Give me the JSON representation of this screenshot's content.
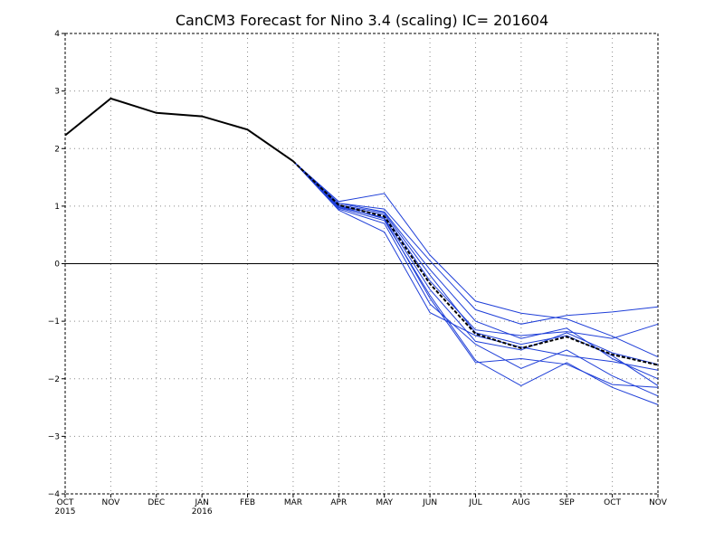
{
  "chart_data": {
    "type": "line",
    "title": "CanCM3 Forecast for Nino 3.4 (scaling) IC= 201604",
    "xlabel": "",
    "ylabel": "",
    "ylim": [
      -4,
      4
    ],
    "yticks": [
      "-4",
      "-3",
      "-2",
      "-1",
      "0",
      "1",
      "2",
      "3",
      "4"
    ],
    "categories": [
      "OCT",
      "NOV",
      "DEC",
      "JAN",
      "FEB",
      "MAR",
      "APR",
      "MAY",
      "JUN",
      "JUL",
      "AUG",
      "SEP",
      "OCT",
      "NOV"
    ],
    "category_sublabels": [
      "2015",
      "",
      "",
      "2016",
      "",
      "",
      "",
      "",
      "",
      "",
      "",
      "",
      "",
      ""
    ],
    "grid": true,
    "reference_line": 0,
    "colors": {
      "members": "#1f3fd8",
      "observed": "#000000",
      "mean": "#000000"
    },
    "observed": {
      "style": "solid-black",
      "values": [
        2.23,
        2.87,
        2.62,
        2.56,
        2.33,
        1.78
      ]
    },
    "ensemble_mean": {
      "style": "dashed-black",
      "start_index": 5,
      "values": [
        1.78,
        1.02,
        0.82,
        -0.35,
        -1.22,
        -1.47,
        -1.27,
        -1.58,
        -1.76
      ]
    },
    "members": [
      {
        "start_index": 5,
        "values": [
          1.78,
          1.08,
          1.22,
          0.15,
          -0.65,
          -0.86,
          -0.96,
          -1.26,
          -1.62
        ]
      },
      {
        "start_index": 5,
        "values": [
          1.78,
          1.05,
          0.95,
          0.05,
          -0.8,
          -1.05,
          -0.9,
          -0.84,
          -0.75
        ]
      },
      {
        "start_index": 5,
        "values": [
          1.78,
          1.0,
          0.85,
          -0.3,
          -1.15,
          -1.25,
          -1.18,
          -1.3,
          -1.05
        ]
      },
      {
        "start_index": 5,
        "values": [
          1.78,
          0.98,
          0.8,
          -0.45,
          -1.35,
          -1.5,
          -1.2,
          -1.55,
          -1.75
        ]
      },
      {
        "start_index": 5,
        "values": [
          1.78,
          0.95,
          0.7,
          -0.7,
          -1.4,
          -1.82,
          -1.5,
          -1.95,
          -2.3
        ]
      },
      {
        "start_index": 5,
        "values": [
          1.78,
          1.02,
          0.88,
          -0.2,
          -1.2,
          -1.4,
          -1.25,
          -1.6,
          -2.12
        ]
      },
      {
        "start_index": 5,
        "values": [
          1.78,
          0.93,
          0.55,
          -0.85,
          -1.25,
          -1.45,
          -1.6,
          -1.7,
          -1.85
        ]
      },
      {
        "start_index": 5,
        "values": [
          1.78,
          1.05,
          0.9,
          -0.1,
          -1.0,
          -1.3,
          -1.12,
          -1.65,
          -2.0
        ]
      },
      {
        "start_index": 5,
        "values": [
          1.78,
          0.97,
          0.75,
          -0.55,
          -1.68,
          -2.12,
          -1.72,
          -2.15,
          -2.45
        ]
      },
      {
        "start_index": 5,
        "values": [
          1.78,
          1.0,
          0.78,
          -0.6,
          -1.72,
          -1.65,
          -1.75,
          -2.1,
          -2.15
        ]
      }
    ]
  }
}
